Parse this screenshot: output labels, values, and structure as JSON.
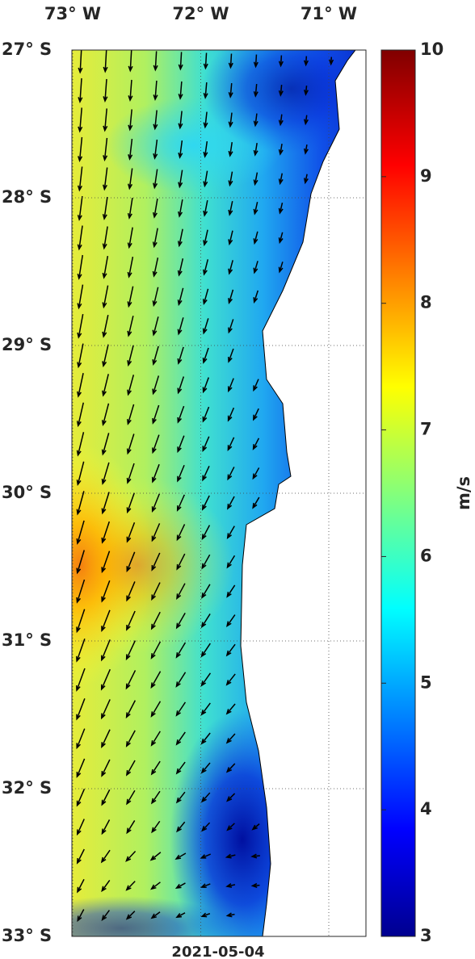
{
  "map": {
    "lon_ticks": [
      {
        "value": -73,
        "label": "73° W"
      },
      {
        "value": -72,
        "label": "72° W"
      },
      {
        "value": -71,
        "label": "71° W"
      }
    ],
    "lat_ticks": [
      {
        "value": -27,
        "label": "27° S"
      },
      {
        "value": -28,
        "label": "28° S"
      },
      {
        "value": -29,
        "label": "29° S"
      },
      {
        "value": -30,
        "label": "30° S"
      },
      {
        "value": -31,
        "label": "31° S"
      },
      {
        "value": -32,
        "label": "32° S"
      },
      {
        "value": -33,
        "label": "33° S"
      }
    ],
    "date": "2021-05-04"
  },
  "colorbar": {
    "label": "m/s",
    "lim": [
      3,
      10
    ],
    "ticks": [
      3,
      4,
      5,
      6,
      7,
      8,
      9,
      10
    ]
  }
}
